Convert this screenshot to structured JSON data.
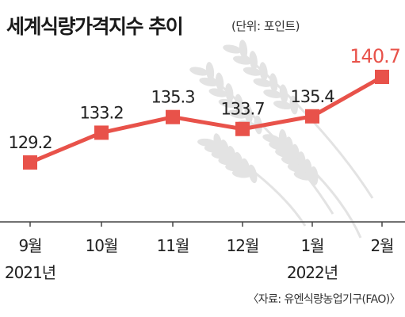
{
  "title": "세계식량가격지수 추이",
  "unit_note": "(단위: 포인트)",
  "source_note": "〈자료: 유엔식량농업기구(FAO)〉",
  "colors": {
    "series": "#e8524a",
    "last_label": "#e8524a",
    "text": "#222222",
    "axis": "#444444",
    "wheat": "#e3e3e3"
  },
  "chart_data": {
    "type": "line",
    "title": "세계식량가격지수 추이",
    "unit": "(단위: 포인트)",
    "categories": [
      "9월",
      "10월",
      "11월",
      "12월",
      "1월",
      "2월"
    ],
    "year_labels": [
      "2021년",
      "",
      "",
      "",
      "2022년",
      ""
    ],
    "series": [
      {
        "values": [
          129.2,
          133.2,
          135.3,
          133.7,
          135.4,
          140.7
        ],
        "value_labels": [
          "129.2",
          "133.2",
          "135.3",
          "133.7",
          "135.4",
          "140.7"
        ]
      }
    ],
    "grid": false,
    "legend": "none",
    "decoration": "wheat-illustration"
  }
}
